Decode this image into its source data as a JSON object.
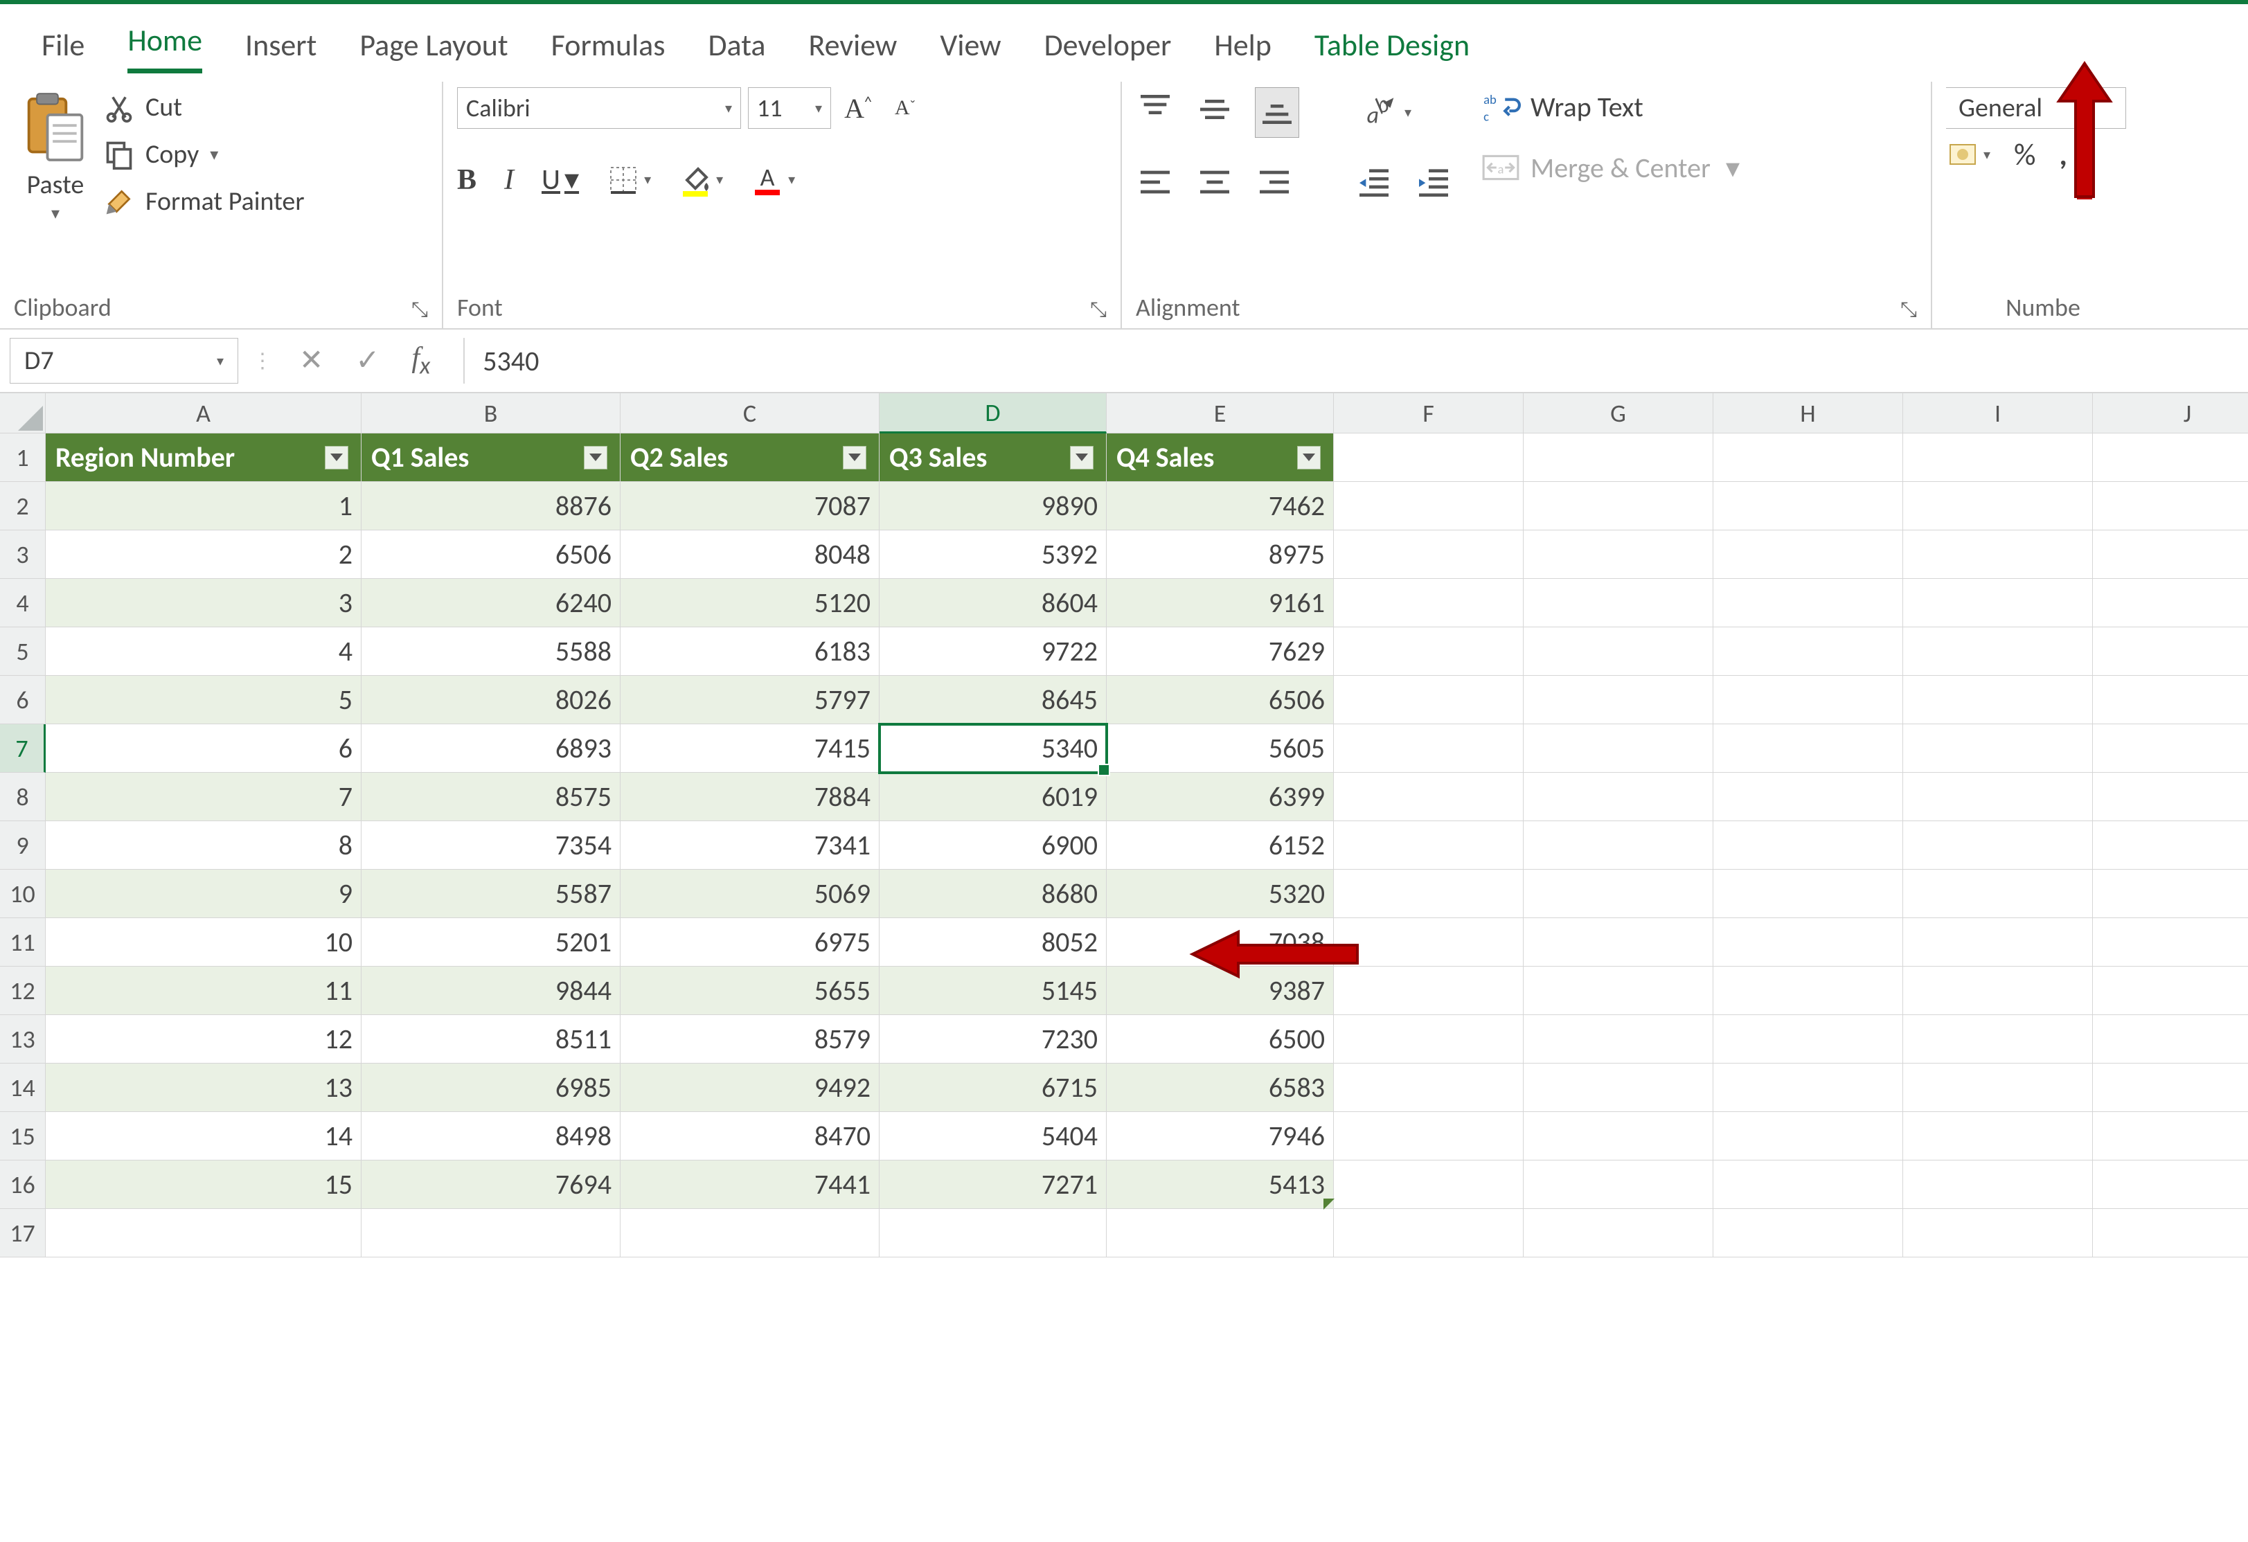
{
  "colors": {
    "accent_green": "#0f7a3e",
    "table_header_bg": "#548235",
    "table_band_bg": "#eaf1e4",
    "grid_border": "#d6d6d6",
    "annotation_arrow": "#c00000"
  },
  "ribbon_tabs": {
    "file": "File",
    "home": "Home",
    "insert": "Insert",
    "page_layout": "Page Layout",
    "formulas": "Formulas",
    "data": "Data",
    "review": "Review",
    "view": "View",
    "developer": "Developer",
    "help": "Help",
    "table_design": "Table Design"
  },
  "ribbon": {
    "clipboard": {
      "paste": "Paste",
      "cut": "Cut",
      "copy": "Copy",
      "format_painter": "Format Painter",
      "group_label": "Clipboard"
    },
    "font": {
      "font_name": "Calibri",
      "font_size": "11",
      "group_label": "Font"
    },
    "alignment": {
      "wrap_text": "Wrap Text",
      "merge_center": "Merge & Center",
      "group_label": "Alignment"
    },
    "number": {
      "format": "General",
      "group_label": "Numbe"
    }
  },
  "formula_bar": {
    "name_box": "D7",
    "formula": "5340"
  },
  "grid_columns": [
    "A",
    "B",
    "C",
    "D",
    "E",
    "F",
    "G",
    "H",
    "I",
    "J"
  ],
  "table": {
    "selected_column_index": 3,
    "selected_row_header": 7,
    "headers": [
      "Region Number",
      "Q1 Sales",
      "Q2 Sales",
      "Q3 Sales",
      "Q4 Sales"
    ],
    "rows": [
      [
        1,
        8876,
        7087,
        9890,
        7462
      ],
      [
        2,
        6506,
        8048,
        5392,
        8975
      ],
      [
        3,
        6240,
        5120,
        8604,
        9161
      ],
      [
        4,
        5588,
        6183,
        9722,
        7629
      ],
      [
        5,
        8026,
        5797,
        8645,
        6506
      ],
      [
        6,
        6893,
        7415,
        5340,
        5605
      ],
      [
        7,
        8575,
        7884,
        6019,
        6399
      ],
      [
        8,
        7354,
        7341,
        6900,
        6152
      ],
      [
        9,
        5587,
        5069,
        8680,
        5320
      ],
      [
        10,
        5201,
        6975,
        8052,
        7038
      ],
      [
        11,
        9844,
        5655,
        5145,
        9387
      ],
      [
        12,
        8511,
        8579,
        7230,
        6500
      ],
      [
        13,
        6985,
        9492,
        6715,
        6583
      ],
      [
        14,
        8498,
        8470,
        5404,
        7946
      ],
      [
        15,
        7694,
        7441,
        7271,
        5413
      ]
    ],
    "selected_cell": {
      "row_index": 5,
      "col_index": 3,
      "address": "D7",
      "value": 5340
    }
  }
}
